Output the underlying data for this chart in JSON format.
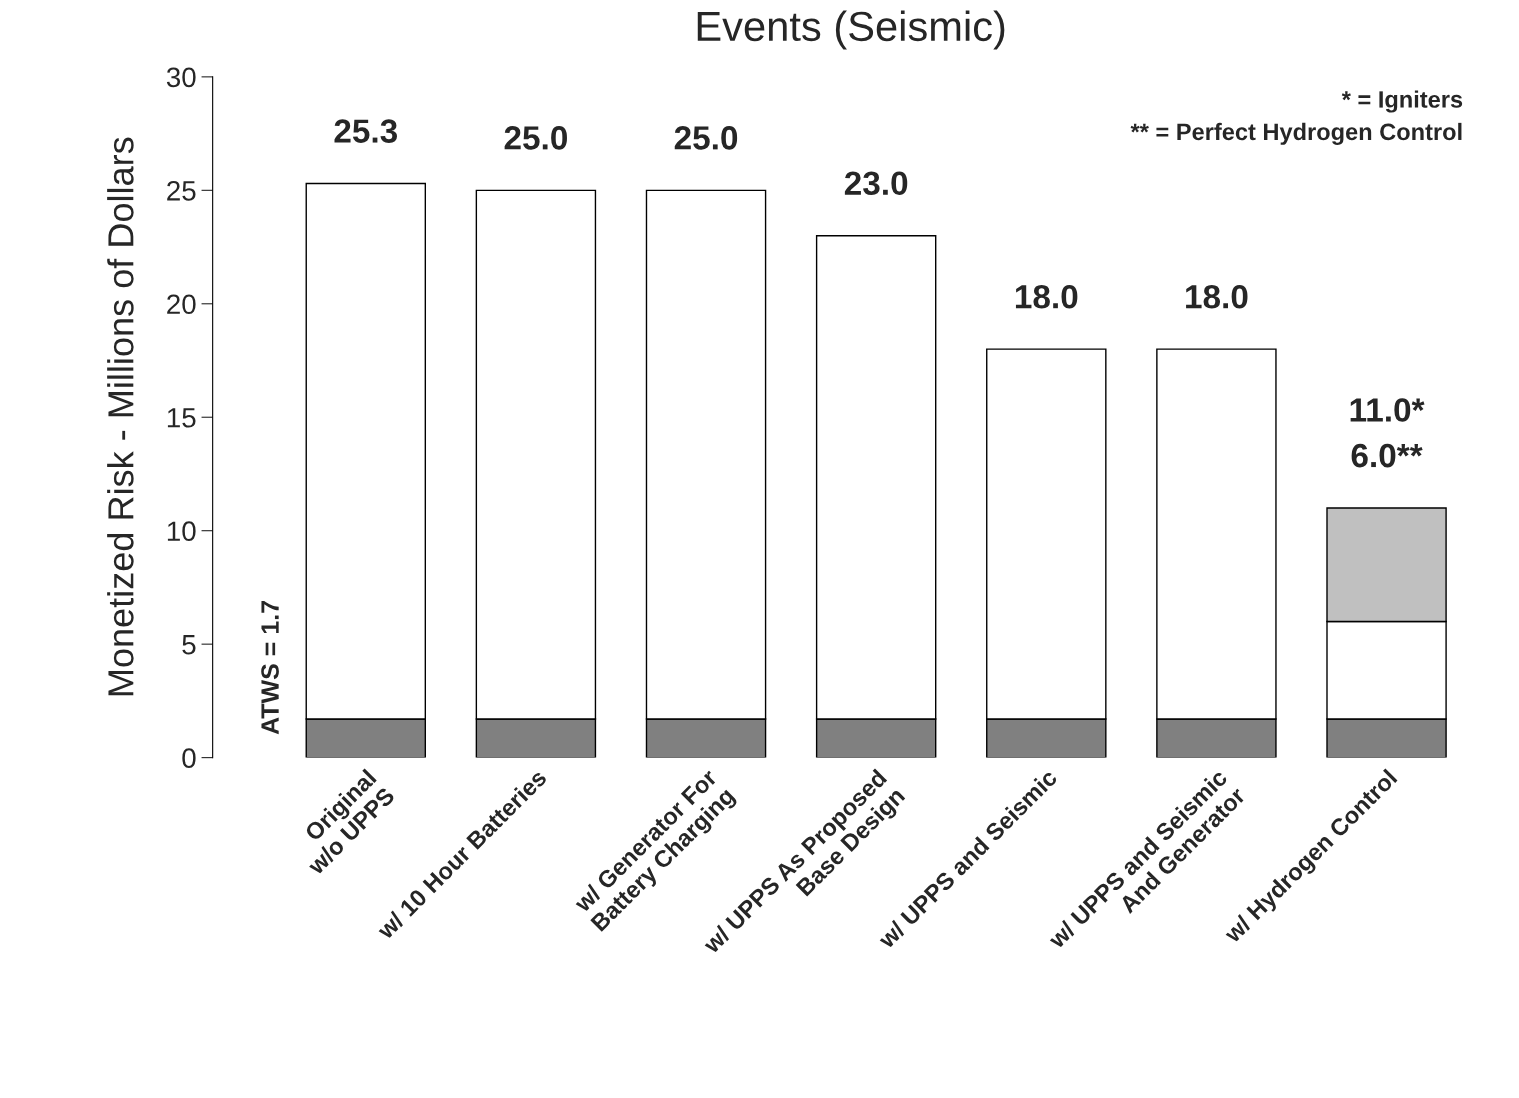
{
  "chart_data": {
    "type": "bar",
    "title": "Events (Seismic)",
    "ylabel": "Monetized Risk - Millions of Dollars",
    "categories": [
      "Original\nw/o UPPS",
      "w/ 10 Hour Batteries",
      "w/ Generator For\nBattery Charging",
      "w/ UPPS As Proposed\nBase Design",
      "w/ UPPS and Seismic",
      "w/ UPPS and Seismic\nAnd Generator",
      "w/ Hydrogen Control"
    ],
    "stacked": true,
    "series": [
      {
        "color": "#808080",
        "values": [
          1.7,
          1.7,
          1.7,
          1.7,
          1.7,
          1.7,
          1.7
        ]
      },
      {
        "color": "#ffffff",
        "values": [
          23.6,
          23.3,
          23.3,
          21.3,
          16.3,
          16.3,
          4.3
        ]
      },
      {
        "color": "#c0c0c0",
        "values": [
          null,
          null,
          null,
          null,
          null,
          null,
          5.0
        ]
      }
    ],
    "totals": [
      "25.3",
      "25.0",
      "25.0",
      "23.0",
      "18.0",
      "18.0",
      "11.0*\n6.0**"
    ],
    "ylim": [
      0,
      30
    ],
    "yticks": [
      0,
      5,
      10,
      15,
      20,
      25,
      30
    ],
    "grid": false,
    "legend": false,
    "annotations": [
      "ATWS = 1.7",
      "* = Igniters\n** = Perfect Hydrogen Control"
    ]
  }
}
